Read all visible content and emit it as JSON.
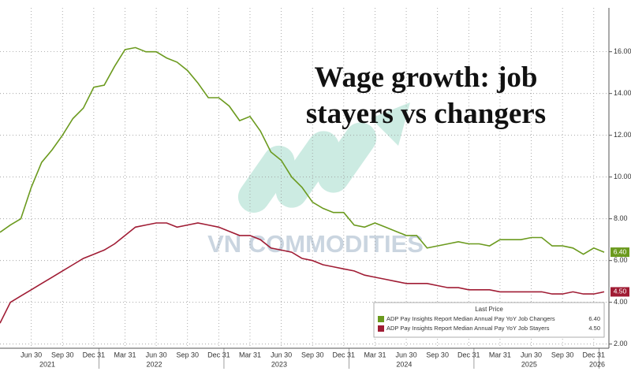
{
  "chart_data": {
    "type": "line",
    "title": "Wage growth: job stayers vs changers",
    "watermark": "VN COMMODITIES",
    "categories": [
      null,
      null,
      null,
      "Jun 30",
      null,
      null,
      "Sep 30",
      null,
      null,
      "Dec 31",
      null,
      null,
      "Mar 31",
      null,
      null,
      "Jun 30",
      null,
      null,
      "Sep 30",
      null,
      null,
      "Dec 31",
      null,
      null,
      "Mar 31",
      null,
      null,
      "Jun 30",
      null,
      null,
      "Sep 30",
      null,
      null,
      "Dec 31",
      null,
      null,
      "Mar 31",
      null,
      null,
      "Jun 30",
      null,
      null,
      "Sep 30",
      null,
      null,
      "Dec 31",
      null,
      null,
      "Mar 31",
      null,
      null,
      "Jun 30",
      null,
      null,
      "Sep 30",
      null,
      null,
      "Dec 31",
      null
    ],
    "x_group_labels": [
      "2021",
      "2022",
      "2023",
      "2024",
      "2025",
      "2026"
    ],
    "series": [
      {
        "name": "ADP Pay Insights Report Median Annual Pay YoY Job Changers",
        "color": "#6b9a1e",
        "values": [
          7.35,
          7.7,
          8.0,
          9.5,
          10.7,
          11.3,
          12.0,
          12.8,
          13.3,
          14.3,
          14.4,
          15.3,
          16.1,
          16.2,
          16.0,
          16.0,
          15.7,
          15.5,
          15.1,
          14.5,
          13.8,
          13.8,
          13.4,
          12.7,
          12.9,
          12.2,
          11.2,
          10.8,
          10.0,
          9.5,
          8.8,
          8.5,
          8.3,
          8.3,
          7.7,
          7.6,
          7.8,
          7.6,
          7.4,
          7.2,
          7.2,
          6.6,
          6.7,
          6.8,
          6.9,
          6.8,
          6.8,
          6.7,
          7.0,
          7.0,
          7.0,
          7.1,
          7.1,
          6.7,
          6.7,
          6.6,
          6.3,
          6.6,
          6.4
        ],
        "last_label": "6.40"
      },
      {
        "name": "ADP Pay Insights Report Median Annual Pay YoY Job Stayers",
        "color": "#a01c34",
        "values": [
          3.0,
          4.0,
          4.3,
          4.6,
          4.9,
          5.2,
          5.5,
          5.8,
          6.1,
          6.3,
          6.5,
          6.8,
          7.2,
          7.6,
          7.7,
          7.8,
          7.8,
          7.6,
          7.7,
          7.8,
          7.7,
          7.6,
          7.4,
          7.2,
          7.2,
          7.0,
          6.6,
          6.5,
          6.4,
          6.1,
          6.0,
          5.8,
          5.7,
          5.6,
          5.5,
          5.3,
          5.2,
          5.1,
          5.0,
          4.9,
          4.9,
          4.9,
          4.8,
          4.7,
          4.7,
          4.6,
          4.6,
          4.6,
          4.5,
          4.5,
          4.5,
          4.5,
          4.5,
          4.4,
          4.4,
          4.5,
          4.4,
          4.4,
          4.5
        ],
        "last_label": "4.50"
      }
    ],
    "ylim": [
      1.8,
      18.1
    ],
    "yticks": [
      {
        "value": 2,
        "label": "2.00"
      },
      {
        "value": 4,
        "label": "4.00"
      },
      {
        "value": 6,
        "label": "6.00"
      },
      {
        "value": 8,
        "label": "8.00"
      },
      {
        "value": 10,
        "label": "10.00"
      },
      {
        "value": 12,
        "label": "12.00"
      },
      {
        "value": 14,
        "label": "14.00"
      },
      {
        "value": 16,
        "label": "16.00"
      }
    ],
    "grid": true,
    "legend": {
      "title": "Last Price",
      "corner": "lower right"
    }
  }
}
